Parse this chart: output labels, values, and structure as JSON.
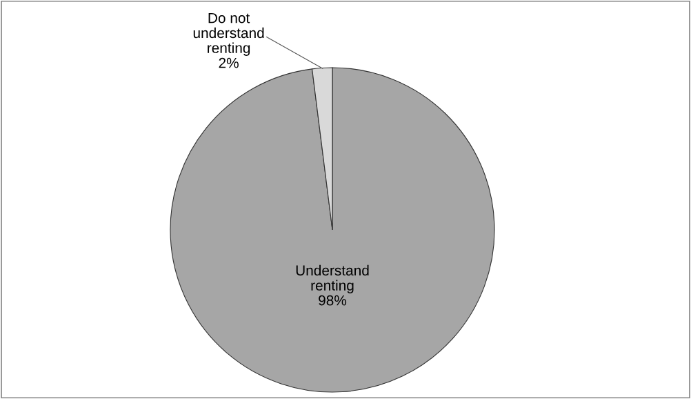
{
  "chart_data": {
    "type": "pie",
    "categories": [
      "Understand\nrenting",
      "Do not\nunderstand\nrenting"
    ],
    "values": [
      98,
      2
    ],
    "colors": [
      "#a6a6a6",
      "#d9d9d9"
    ],
    "value_labels": [
      "98%",
      "2%"
    ]
  }
}
